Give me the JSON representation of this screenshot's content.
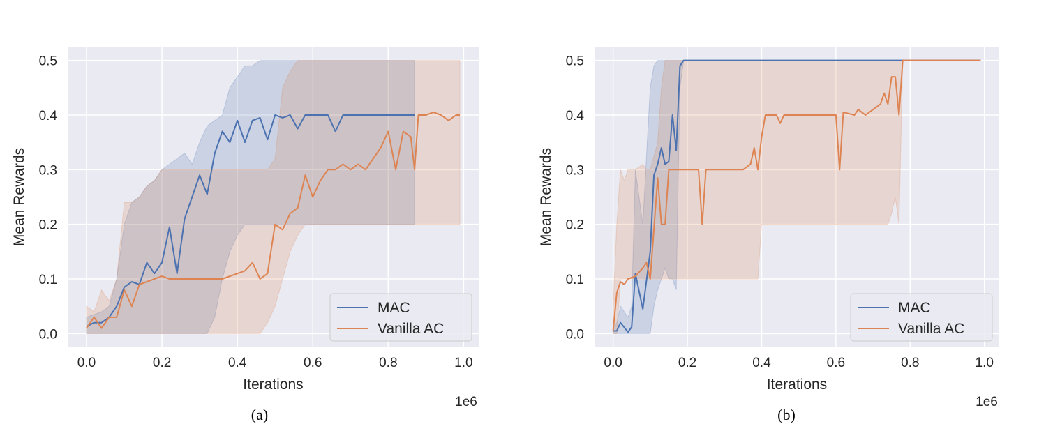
{
  "colors": {
    "background": "#eaeaf2",
    "grid": "#ffffff",
    "MAC": "#4c72b0",
    "Vanilla AC": "#dd8452"
  },
  "chart_data": [
    {
      "type": "line",
      "caption": "(a)",
      "xlabel": "Iterations",
      "ylabel": "Mean Rewards",
      "x_offset_label": "1e6",
      "xlim": [
        -0.05,
        1.04
      ],
      "ylim": [
        -0.025,
        0.525
      ],
      "xticks": [
        "0.0",
        "0.2",
        "0.4",
        "0.6",
        "0.8",
        "1.0"
      ],
      "yticks": [
        "0.0",
        "0.1",
        "0.2",
        "0.3",
        "0.4",
        "0.5"
      ],
      "grid": true,
      "legend": "bottom-right",
      "series": [
        {
          "name": "MAC",
          "x": [
            0,
            0.02,
            0.04,
            0.06,
            0.08,
            0.1,
            0.12,
            0.14,
            0.16,
            0.18,
            0.2,
            0.22,
            0.24,
            0.26,
            0.28,
            0.3,
            0.32,
            0.34,
            0.36,
            0.38,
            0.4,
            0.42,
            0.44,
            0.46,
            0.48,
            0.5,
            0.52,
            0.54,
            0.56,
            0.58,
            0.6,
            0.62,
            0.64,
            0.66,
            0.68,
            0.7,
            0.72,
            0.74,
            0.76,
            0.78,
            0.8,
            0.82,
            0.84,
            0.86,
            0.87
          ],
          "y": [
            0.013,
            0.02,
            0.02,
            0.03,
            0.05,
            0.085,
            0.095,
            0.09,
            0.13,
            0.11,
            0.13,
            0.195,
            0.11,
            0.21,
            0.25,
            0.29,
            0.255,
            0.33,
            0.37,
            0.35,
            0.39,
            0.35,
            0.39,
            0.395,
            0.355,
            0.4,
            0.395,
            0.4,
            0.375,
            0.4,
            0.4,
            0.4,
            0.4,
            0.37,
            0.4,
            0.4,
            0.4,
            0.4,
            0.4,
            0.4,
            0.4,
            0.4,
            0.4,
            0.4,
            0.4
          ],
          "lower": [
            0,
            0,
            0,
            0,
            0,
            0,
            0,
            0,
            0,
            0,
            0,
            0,
            0,
            0,
            0,
            0,
            0,
            0.03,
            0.1,
            0.15,
            0.18,
            0.2,
            0.2,
            0.2,
            0.2,
            0.2,
            0.2,
            0.2,
            0.2,
            0.2,
            0.2,
            0.2,
            0.2,
            0.2,
            0.2,
            0.2,
            0.2,
            0.2,
            0.2,
            0.2,
            0.2,
            0.2,
            0.2,
            0.2,
            0.2
          ],
          "upper": [
            0.03,
            0.035,
            0.04,
            0.05,
            0.1,
            0.2,
            0.24,
            0.25,
            0.27,
            0.28,
            0.3,
            0.31,
            0.32,
            0.33,
            0.31,
            0.35,
            0.38,
            0.39,
            0.4,
            0.45,
            0.47,
            0.49,
            0.49,
            0.5,
            0.5,
            0.5,
            0.5,
            0.5,
            0.5,
            0.5,
            0.5,
            0.5,
            0.5,
            0.5,
            0.5,
            0.5,
            0.5,
            0.5,
            0.5,
            0.5,
            0.5,
            0.5,
            0.5,
            0.5,
            0.5
          ]
        },
        {
          "name": "Vanilla AC",
          "x": [
            0,
            0.02,
            0.04,
            0.06,
            0.08,
            0.1,
            0.12,
            0.14,
            0.16,
            0.18,
            0.2,
            0.22,
            0.24,
            0.3,
            0.36,
            0.4,
            0.42,
            0.44,
            0.46,
            0.48,
            0.5,
            0.52,
            0.54,
            0.56,
            0.58,
            0.6,
            0.62,
            0.64,
            0.66,
            0.68,
            0.7,
            0.72,
            0.74,
            0.76,
            0.78,
            0.8,
            0.82,
            0.84,
            0.86,
            0.87,
            0.88,
            0.9,
            0.92,
            0.94,
            0.96,
            0.98,
            0.99
          ],
          "y": [
            0.01,
            0.03,
            0.01,
            0.03,
            0.03,
            0.08,
            0.05,
            0.09,
            0.095,
            0.1,
            0.105,
            0.1,
            0.1,
            0.1,
            0.1,
            0.11,
            0.115,
            0.13,
            0.1,
            0.11,
            0.2,
            0.19,
            0.22,
            0.23,
            0.29,
            0.25,
            0.28,
            0.3,
            0.3,
            0.31,
            0.3,
            0.31,
            0.3,
            0.32,
            0.34,
            0.37,
            0.3,
            0.37,
            0.36,
            0.3,
            0.4,
            0.4,
            0.405,
            0.4,
            0.39,
            0.4,
            0.4
          ],
          "lower": [
            0,
            0,
            0,
            0,
            0,
            0,
            0,
            0,
            0,
            0,
            0,
            0,
            0,
            0,
            0,
            0,
            0,
            0,
            0,
            0.02,
            0.05,
            0.1,
            0.15,
            0.18,
            0.2,
            0.2,
            0.2,
            0.2,
            0.2,
            0.2,
            0.2,
            0.2,
            0.2,
            0.2,
            0.2,
            0.2,
            0.2,
            0.2,
            0.2,
            0.2,
            0.2,
            0.2,
            0.2,
            0.2,
            0.2,
            0.2,
            0.2
          ],
          "upper": [
            0.05,
            0.04,
            0.08,
            0.06,
            0.1,
            0.24,
            0.24,
            0.25,
            0.27,
            0.28,
            0.3,
            0.3,
            0.3,
            0.3,
            0.3,
            0.3,
            0.3,
            0.3,
            0.3,
            0.3,
            0.32,
            0.45,
            0.48,
            0.5,
            0.5,
            0.5,
            0.5,
            0.5,
            0.5,
            0.5,
            0.5,
            0.5,
            0.5,
            0.5,
            0.5,
            0.5,
            0.5,
            0.5,
            0.5,
            0.5,
            0.5,
            0.5,
            0.5,
            0.5,
            0.5,
            0.5,
            0.5
          ]
        }
      ]
    },
    {
      "type": "line",
      "caption": "(b)",
      "xlabel": "Iterations",
      "ylabel": "Mean Rewards",
      "x_offset_label": "1e6",
      "xlim": [
        -0.05,
        1.04
      ],
      "ylim": [
        -0.025,
        0.525
      ],
      "xticks": [
        "0.0",
        "0.2",
        "0.4",
        "0.6",
        "0.8",
        "1.0"
      ],
      "yticks": [
        "0.0",
        "0.1",
        "0.2",
        "0.3",
        "0.4",
        "0.5"
      ],
      "grid": true,
      "legend": "bottom-right",
      "series": [
        {
          "name": "MAC",
          "x": [
            0,
            0.01,
            0.02,
            0.04,
            0.05,
            0.06,
            0.08,
            0.1,
            0.11,
            0.12,
            0.13,
            0.14,
            0.15,
            0.16,
            0.17,
            0.18,
            0.19,
            0.25,
            0.3,
            0.4,
            0.5,
            0.6,
            0.7,
            0.8,
            0.9,
            0.99
          ],
          "y": [
            0.005,
            0.005,
            0.02,
            0.003,
            0.012,
            0.11,
            0.045,
            0.15,
            0.29,
            0.31,
            0.34,
            0.31,
            0.315,
            0.4,
            0.335,
            0.49,
            0.5,
            0.5,
            0.5,
            0.5,
            0.5,
            0.5,
            0.5,
            0.5,
            0.5,
            0.5
          ],
          "lower": [
            0,
            0,
            0,
            0,
            0,
            0,
            0,
            0,
            0.05,
            0.08,
            0.1,
            0.12,
            0.1,
            0.1,
            0.08,
            0.45,
            0.5,
            0.5,
            0.5,
            0.5,
            0.5,
            0.5,
            0.5,
            0.5,
            0.5,
            0.5
          ],
          "upper": [
            0.01,
            0.02,
            0.05,
            0.03,
            0.05,
            0.3,
            0.2,
            0.45,
            0.49,
            0.5,
            0.5,
            0.5,
            0.5,
            0.5,
            0.5,
            0.5,
            0.5,
            0.5,
            0.5,
            0.5,
            0.5,
            0.5,
            0.5,
            0.5,
            0.5,
            0.5
          ]
        },
        {
          "name": "Vanilla AC",
          "x": [
            0,
            0.01,
            0.02,
            0.03,
            0.04,
            0.06,
            0.08,
            0.09,
            0.1,
            0.12,
            0.13,
            0.14,
            0.15,
            0.2,
            0.23,
            0.24,
            0.25,
            0.3,
            0.35,
            0.37,
            0.38,
            0.39,
            0.4,
            0.41,
            0.44,
            0.45,
            0.46,
            0.5,
            0.6,
            0.61,
            0.62,
            0.65,
            0.66,
            0.68,
            0.7,
            0.72,
            0.73,
            0.74,
            0.75,
            0.76,
            0.77,
            0.78,
            0.8,
            0.9,
            0.99
          ],
          "y": [
            0.005,
            0.075,
            0.095,
            0.09,
            0.1,
            0.105,
            0.12,
            0.13,
            0.1,
            0.285,
            0.2,
            0.2,
            0.3,
            0.3,
            0.3,
            0.2,
            0.3,
            0.3,
            0.3,
            0.31,
            0.34,
            0.3,
            0.36,
            0.4,
            0.4,
            0.385,
            0.4,
            0.4,
            0.4,
            0.3,
            0.405,
            0.4,
            0.41,
            0.4,
            0.41,
            0.42,
            0.44,
            0.42,
            0.47,
            0.47,
            0.4,
            0.5,
            0.5,
            0.5,
            0.5
          ],
          "lower": [
            0,
            0,
            0.1,
            0.1,
            0.1,
            0.1,
            0.1,
            0.1,
            0.1,
            0.1,
            0.1,
            0.1,
            0.1,
            0.1,
            0.1,
            0.1,
            0.1,
            0.1,
            0.1,
            0.1,
            0.1,
            0.1,
            0.2,
            0.2,
            0.2,
            0.2,
            0.2,
            0.2,
            0.2,
            0.2,
            0.2,
            0.2,
            0.2,
            0.2,
            0.2,
            0.2,
            0.2,
            0.2,
            0.22,
            0.25,
            0.2,
            0.5,
            0.5,
            0.5,
            0.5
          ],
          "upper": [
            0.05,
            0.2,
            0.3,
            0.28,
            0.3,
            0.3,
            0.31,
            0.3,
            0.3,
            0.35,
            0.45,
            0.5,
            0.5,
            0.5,
            0.5,
            0.5,
            0.5,
            0.5,
            0.5,
            0.5,
            0.5,
            0.5,
            0.5,
            0.5,
            0.5,
            0.5,
            0.5,
            0.5,
            0.5,
            0.5,
            0.5,
            0.5,
            0.5,
            0.5,
            0.5,
            0.5,
            0.5,
            0.5,
            0.5,
            0.5,
            0.5,
            0.5,
            0.5,
            0.5,
            0.5
          ]
        }
      ]
    }
  ]
}
